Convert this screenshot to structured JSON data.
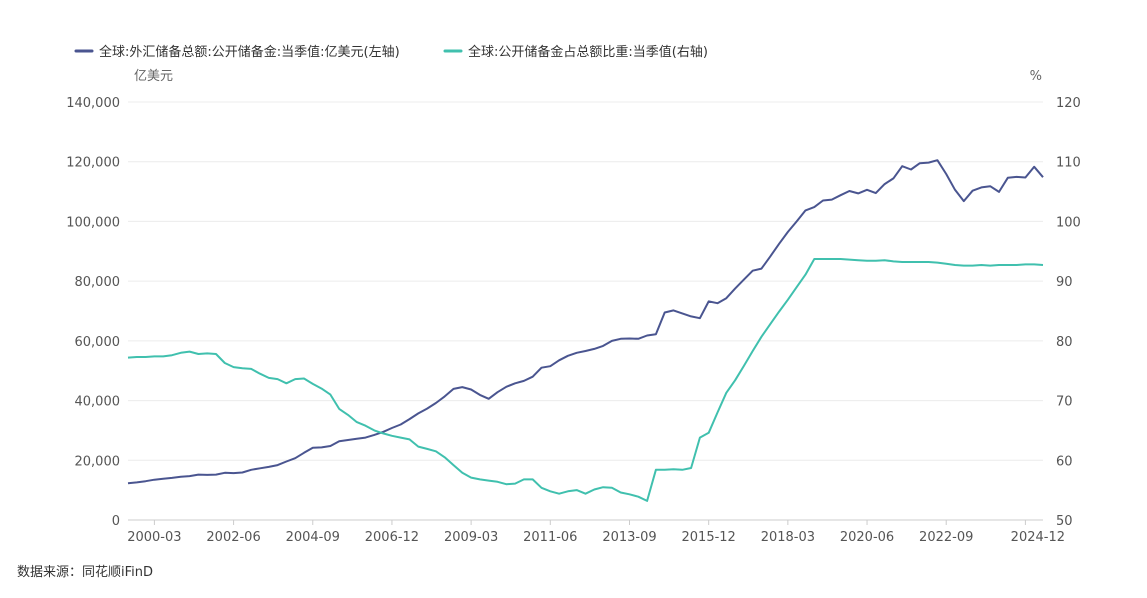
{
  "chart_data": {
    "type": "line",
    "legend_position": "top-left",
    "grid": true,
    "series": [
      {
        "name": "全球:外汇储备总额:公开储备金:当季值:亿美元(左轴)",
        "axis": "left",
        "color": "#4a5590",
        "points": [
          [
            "1999-06",
            12300
          ],
          [
            "1999-09",
            12600
          ],
          [
            "1999-12",
            13000
          ],
          [
            "2000-03",
            13500
          ],
          [
            "2000-06",
            13800
          ],
          [
            "2000-09",
            14100
          ],
          [
            "2000-12",
            14500
          ],
          [
            "2001-03",
            14700
          ],
          [
            "2001-06",
            15200
          ],
          [
            "2001-09",
            15100
          ],
          [
            "2001-12",
            15200
          ],
          [
            "2002-03",
            15800
          ],
          [
            "2002-06",
            15700
          ],
          [
            "2002-09",
            15900
          ],
          [
            "2002-12",
            16800
          ],
          [
            "2003-03",
            17300
          ],
          [
            "2003-06",
            17800
          ],
          [
            "2003-09",
            18400
          ],
          [
            "2003-12",
            19600
          ],
          [
            "2004-03",
            20700
          ],
          [
            "2004-06",
            22500
          ],
          [
            "2004-09",
            24200
          ],
          [
            "2004-12",
            24300
          ],
          [
            "2005-03",
            24800
          ],
          [
            "2005-06",
            26400
          ],
          [
            "2005-09",
            26800
          ],
          [
            "2005-12",
            27200
          ],
          [
            "2006-03",
            27600
          ],
          [
            "2006-06",
            28500
          ],
          [
            "2006-09",
            29500
          ],
          [
            "2006-12",
            30800
          ],
          [
            "2007-03",
            32000
          ],
          [
            "2007-06",
            33800
          ],
          [
            "2007-09",
            35700
          ],
          [
            "2007-12",
            37300
          ],
          [
            "2008-03",
            39200
          ],
          [
            "2008-06",
            41400
          ],
          [
            "2008-09",
            43900
          ],
          [
            "2008-12",
            44500
          ],
          [
            "2009-03",
            43700
          ],
          [
            "2009-06",
            41900
          ],
          [
            "2009-09",
            40600
          ],
          [
            "2009-12",
            42800
          ],
          [
            "2010-03",
            44600
          ],
          [
            "2010-06",
            45800
          ],
          [
            "2010-09",
            46600
          ],
          [
            "2010-12",
            48000
          ],
          [
            "2011-03",
            51000
          ],
          [
            "2011-06",
            51500
          ],
          [
            "2011-09",
            53500
          ],
          [
            "2011-12",
            55000
          ],
          [
            "2012-03",
            56000
          ],
          [
            "2012-06",
            56600
          ],
          [
            "2012-09",
            57300
          ],
          [
            "2012-12",
            58300
          ],
          [
            "2013-03",
            60000
          ],
          [
            "2013-06",
            60700
          ],
          [
            "2013-09",
            60800
          ],
          [
            "2013-12",
            60700
          ],
          [
            "2014-03",
            61800
          ],
          [
            "2014-06",
            62200
          ],
          [
            "2014-09",
            69500
          ],
          [
            "2014-12",
            70200
          ],
          [
            "2015-03",
            69200
          ],
          [
            "2015-06",
            68200
          ],
          [
            "2015-09",
            67600
          ],
          [
            "2015-12",
            73200
          ],
          [
            "2016-03",
            72600
          ],
          [
            "2016-06",
            74300
          ],
          [
            "2016-09",
            77500
          ],
          [
            "2016-12",
            80500
          ],
          [
            "2017-03",
            83500
          ],
          [
            "2017-06",
            84200
          ],
          [
            "2017-09",
            88300
          ],
          [
            "2017-12",
            92500
          ],
          [
            "2018-03",
            96500
          ],
          [
            "2018-06",
            100000
          ],
          [
            "2018-09",
            103700
          ],
          [
            "2018-12",
            104800
          ],
          [
            "2019-03",
            107000
          ],
          [
            "2019-06",
            107300
          ],
          [
            "2019-09",
            108800
          ],
          [
            "2019-12",
            110200
          ],
          [
            "2020-03",
            109400
          ],
          [
            "2020-06",
            110600
          ],
          [
            "2020-09",
            109500
          ],
          [
            "2020-12",
            112500
          ],
          [
            "2021-03",
            114400
          ],
          [
            "2021-06",
            118500
          ],
          [
            "2021-09",
            117400
          ],
          [
            "2021-12",
            119500
          ],
          [
            "2022-03",
            119700
          ],
          [
            "2022-06",
            120500
          ],
          [
            "2022-09",
            115900
          ],
          [
            "2022-12",
            110600
          ],
          [
            "2023-03",
            106800
          ],
          [
            "2023-06",
            110300
          ],
          [
            "2023-09",
            111400
          ],
          [
            "2023-12",
            111800
          ],
          [
            "2024-03",
            109900
          ],
          [
            "2024-06",
            114600
          ],
          [
            "2024-09",
            114900
          ],
          [
            "2024-12",
            114700
          ],
          [
            "2025-03",
            118300
          ],
          [
            "2025-06",
            114800
          ]
        ]
      },
      {
        "name": "全球:公开储备金占总额比重:当季值(右轴)",
        "axis": "right",
        "color": "#40c0ae",
        "points": [
          [
            "1999-06",
            77.2
          ],
          [
            "1999-09",
            77.3
          ],
          [
            "1999-12",
            77.3
          ],
          [
            "2000-03",
            77.4
          ],
          [
            "2000-06",
            77.4
          ],
          [
            "2000-09",
            77.6
          ],
          [
            "2000-12",
            78.0
          ],
          [
            "2001-03",
            78.2
          ],
          [
            "2001-06",
            77.8
          ],
          [
            "2001-09",
            77.9
          ],
          [
            "2001-12",
            77.8
          ],
          [
            "2002-03",
            76.3
          ],
          [
            "2002-06",
            75.6
          ],
          [
            "2002-09",
            75.4
          ],
          [
            "2002-12",
            75.3
          ],
          [
            "2003-03",
            74.5
          ],
          [
            "2003-06",
            73.8
          ],
          [
            "2003-09",
            73.6
          ],
          [
            "2003-12",
            72.9
          ],
          [
            "2004-03",
            73.6
          ],
          [
            "2004-06",
            73.7
          ],
          [
            "2004-09",
            72.8
          ],
          [
            "2004-12",
            72.0
          ],
          [
            "2005-03",
            71.0
          ],
          [
            "2005-06",
            68.6
          ],
          [
            "2005-09",
            67.6
          ],
          [
            "2005-12",
            66.4
          ],
          [
            "2006-03",
            65.8
          ],
          [
            "2006-06",
            65.0
          ],
          [
            "2006-09",
            64.5
          ],
          [
            "2006-12",
            64.1
          ],
          [
            "2007-03",
            63.8
          ],
          [
            "2007-06",
            63.5
          ],
          [
            "2007-09",
            62.3
          ],
          [
            "2007-12",
            61.9
          ],
          [
            "2008-03",
            61.5
          ],
          [
            "2008-06",
            60.5
          ],
          [
            "2008-09",
            59.2
          ],
          [
            "2008-12",
            57.9
          ],
          [
            "2009-03",
            57.1
          ],
          [
            "2009-06",
            56.8
          ],
          [
            "2009-09",
            56.6
          ],
          [
            "2009-12",
            56.4
          ],
          [
            "2010-03",
            56.0
          ],
          [
            "2010-06",
            56.1
          ],
          [
            "2010-09",
            56.8
          ],
          [
            "2010-12",
            56.8
          ],
          [
            "2011-03",
            55.4
          ],
          [
            "2011-06",
            54.8
          ],
          [
            "2011-09",
            54.4
          ],
          [
            "2011-12",
            54.8
          ],
          [
            "2012-03",
            55.0
          ],
          [
            "2012-06",
            54.4
          ],
          [
            "2012-09",
            55.1
          ],
          [
            "2012-12",
            55.5
          ],
          [
            "2013-03",
            55.4
          ],
          [
            "2013-06",
            54.6
          ],
          [
            "2013-09",
            54.3
          ],
          [
            "2013-12",
            53.9
          ],
          [
            "2014-03",
            53.2
          ],
          [
            "2014-06",
            58.4
          ],
          [
            "2014-09",
            58.4
          ],
          [
            "2014-12",
            58.5
          ],
          [
            "2015-03",
            58.4
          ],
          [
            "2015-06",
            58.7
          ],
          [
            "2015-09",
            63.8
          ],
          [
            "2015-12",
            64.6
          ],
          [
            "2016-03",
            68.0
          ],
          [
            "2016-06",
            71.3
          ],
          [
            "2016-09",
            73.4
          ],
          [
            "2016-12",
            75.8
          ],
          [
            "2017-03",
            78.3
          ],
          [
            "2017-06",
            80.7
          ],
          [
            "2017-09",
            82.8
          ],
          [
            "2017-12",
            84.9
          ],
          [
            "2018-03",
            86.9
          ],
          [
            "2018-06",
            89.0
          ],
          [
            "2018-09",
            91.1
          ],
          [
            "2018-12",
            93.7
          ],
          [
            "2019-03",
            93.7
          ],
          [
            "2019-06",
            93.7
          ],
          [
            "2019-09",
            93.7
          ],
          [
            "2019-12",
            93.6
          ],
          [
            "2020-03",
            93.5
          ],
          [
            "2020-06",
            93.4
          ],
          [
            "2020-09",
            93.4
          ],
          [
            "2020-12",
            93.5
          ],
          [
            "2021-03",
            93.3
          ],
          [
            "2021-06",
            93.2
          ],
          [
            "2021-09",
            93.2
          ],
          [
            "2021-12",
            93.2
          ],
          [
            "2022-03",
            93.2
          ],
          [
            "2022-06",
            93.1
          ],
          [
            "2022-09",
            92.9
          ],
          [
            "2022-12",
            92.7
          ],
          [
            "2023-03",
            92.6
          ],
          [
            "2023-06",
            92.6
          ],
          [
            "2023-09",
            92.7
          ],
          [
            "2023-12",
            92.6
          ],
          [
            "2024-03",
            92.7
          ],
          [
            "2024-06",
            92.7
          ],
          [
            "2024-09",
            92.7
          ],
          [
            "2024-12",
            92.8
          ],
          [
            "2025-03",
            92.8
          ],
          [
            "2025-06",
            92.7
          ]
        ]
      }
    ],
    "x_ticks": [
      "2000-03",
      "2002-06",
      "2004-09",
      "2006-12",
      "2009-03",
      "2011-06",
      "2013-09",
      "2015-12",
      "2018-03",
      "2020-06",
      "2022-09",
      "2024-12"
    ],
    "x_range": [
      "1999-06",
      "2025-06"
    ],
    "y_left": {
      "unit": "亿美元",
      "range": [
        0,
        140000
      ],
      "ticks": [
        0,
        20000,
        40000,
        60000,
        80000,
        100000,
        120000,
        140000
      ]
    },
    "y_right": {
      "unit": "%",
      "range": [
        50,
        120
      ],
      "ticks": [
        50,
        60,
        70,
        80,
        90,
        100,
        110,
        120
      ]
    },
    "source": "数据来源：同花顺iFinD"
  }
}
